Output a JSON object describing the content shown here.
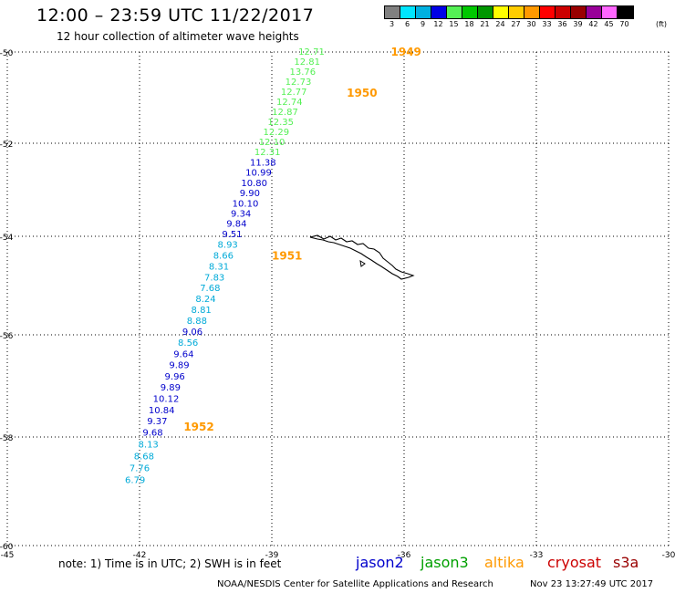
{
  "header": {
    "title": "12:00 – 23:59 UTC 11/22/2017",
    "subtitle": "12 hour collection of altimeter wave heights"
  },
  "legend": {
    "units": "(ft)",
    "swatches": [
      {
        "label": "3",
        "color": "#808080"
      },
      {
        "label": "6",
        "color": "#00e5ff"
      },
      {
        "label": "9",
        "color": "#00b0e0"
      },
      {
        "label": "12",
        "color": "#0000e6"
      },
      {
        "label": "15",
        "color": "#55f055"
      },
      {
        "label": "18",
        "color": "#00c800"
      },
      {
        "label": "21",
        "color": "#009600"
      },
      {
        "label": "24",
        "color": "#ffff00"
      },
      {
        "label": "27",
        "color": "#ffcc00"
      },
      {
        "label": "30",
        "color": "#ff9900"
      },
      {
        "label": "33",
        "color": "#ff0000"
      },
      {
        "label": "36",
        "color": "#cc0000"
      },
      {
        "label": "39",
        "color": "#990000"
      },
      {
        "label": "42",
        "color": "#990099"
      },
      {
        "label": "45",
        "color": "#ff66ff"
      },
      {
        "label": "70",
        "color": "#000000"
      }
    ]
  },
  "map": {
    "lat_labels": [
      {
        "value": -50,
        "label": "-50"
      },
      {
        "value": -52,
        "label": "-52"
      },
      {
        "value": -54,
        "label": "-54"
      },
      {
        "value": -56,
        "label": "-56"
      },
      {
        "value": -58,
        "label": "-58"
      },
      {
        "value": -60,
        "label": "-60"
      }
    ],
    "lon_labels": [
      {
        "value": -45,
        "label": "-45"
      },
      {
        "value": -42,
        "label": "-42"
      },
      {
        "value": -39,
        "label": "-39"
      },
      {
        "value": -36,
        "label": "-36"
      },
      {
        "value": -33,
        "label": "-33"
      },
      {
        "value": -30,
        "label": "-30"
      }
    ],
    "time_labels": [
      {
        "text": "1949",
        "lon": -36.3,
        "lat": -50.0
      },
      {
        "text": "1950",
        "lon": -37.3,
        "lat": -50.9
      },
      {
        "text": "1951",
        "lon": -39.0,
        "lat": -54.4
      },
      {
        "text": "1952",
        "lon": -41.0,
        "lat": -57.8
      }
    ],
    "track": [
      {
        "v": "12.71",
        "lon": -38.1,
        "lat": -50.0,
        "sat": "jason3"
      },
      {
        "v": "12.81",
        "lon": -38.2,
        "lat": -50.22,
        "sat": "jason3"
      },
      {
        "v": "13.76",
        "lon": -38.3,
        "lat": -50.44,
        "sat": "jason3"
      },
      {
        "v": "12.73",
        "lon": -38.4,
        "lat": -50.66,
        "sat": "jason3"
      },
      {
        "v": "12.77",
        "lon": -38.5,
        "lat": -50.88,
        "sat": "jason3"
      },
      {
        "v": "12.74",
        "lon": -38.6,
        "lat": -51.1,
        "sat": "jason3"
      },
      {
        "v": "12.87",
        "lon": -38.7,
        "lat": -51.32,
        "sat": "jason3"
      },
      {
        "v": "12.35",
        "lon": -38.8,
        "lat": -51.54,
        "sat": "jason3"
      },
      {
        "v": "12.29",
        "lon": -38.9,
        "lat": -51.76,
        "sat": "jason3"
      },
      {
        "v": "12.10",
        "lon": -39.0,
        "lat": -51.98,
        "sat": "jason3"
      },
      {
        "v": "12.31",
        "lon": -39.1,
        "lat": -52.2,
        "sat": "jason3"
      },
      {
        "v": "11.38",
        "lon": -39.2,
        "lat": -52.42,
        "sat": "jason2"
      },
      {
        "v": "10.99",
        "lon": -39.3,
        "lat": -52.64,
        "sat": "jason2"
      },
      {
        "v": "10.80",
        "lon": -39.4,
        "lat": -52.86,
        "sat": "jason2"
      },
      {
        "v": "9.90",
        "lon": -39.5,
        "lat": -53.08,
        "sat": "jason2"
      },
      {
        "v": "10.10",
        "lon": -39.6,
        "lat": -53.3,
        "sat": "jason2"
      },
      {
        "v": "9.34",
        "lon": -39.7,
        "lat": -53.52,
        "sat": "jason2"
      },
      {
        "v": "9.84",
        "lon": -39.8,
        "lat": -53.74,
        "sat": "jason2"
      },
      {
        "v": "9.51",
        "lon": -39.9,
        "lat": -53.96,
        "sat": "jason2"
      },
      {
        "v": "8.93",
        "lon": -40.0,
        "lat": -54.18,
        "sat": "cyan"
      },
      {
        "v": "8.66",
        "lon": -40.1,
        "lat": -54.4,
        "sat": "cyan"
      },
      {
        "v": "8.31",
        "lon": -40.2,
        "lat": -54.62,
        "sat": "cyan"
      },
      {
        "v": "7.83",
        "lon": -40.3,
        "lat": -54.84,
        "sat": "cyan"
      },
      {
        "v": "7.68",
        "lon": -40.4,
        "lat": -55.06,
        "sat": "cyan"
      },
      {
        "v": "8.24",
        "lon": -40.5,
        "lat": -55.28,
        "sat": "cyan"
      },
      {
        "v": "8.81",
        "lon": -40.6,
        "lat": -55.5,
        "sat": "cyan"
      },
      {
        "v": "8.88",
        "lon": -40.7,
        "lat": -55.72,
        "sat": "cyan"
      },
      {
        "v": "9.06",
        "lon": -40.8,
        "lat": -55.94,
        "sat": "jason2"
      },
      {
        "v": "8.56",
        "lon": -40.9,
        "lat": -56.16,
        "sat": "cyan"
      },
      {
        "v": "9.64",
        "lon": -41.0,
        "lat": -56.38,
        "sat": "jason2"
      },
      {
        "v": "9.89",
        "lon": -41.1,
        "lat": -56.6,
        "sat": "jason2"
      },
      {
        "v": "9.96",
        "lon": -41.2,
        "lat": -56.82,
        "sat": "jason2"
      },
      {
        "v": "9.89",
        "lon": -41.3,
        "lat": -57.04,
        "sat": "jason2"
      },
      {
        "v": "10.12",
        "lon": -41.4,
        "lat": -57.26,
        "sat": "jason2"
      },
      {
        "v": "10.84",
        "lon": -41.5,
        "lat": -57.48,
        "sat": "jason2"
      },
      {
        "v": "9.37",
        "lon": -41.6,
        "lat": -57.7,
        "sat": "jason2"
      },
      {
        "v": "9.68",
        "lon": -41.7,
        "lat": -57.92,
        "sat": "jason2"
      },
      {
        "v": "8.13",
        "lon": -41.8,
        "lat": -58.14,
        "sat": "cyan"
      },
      {
        "v": "8.68",
        "lon": -41.9,
        "lat": -58.36,
        "sat": "cyan"
      },
      {
        "v": "7.76",
        "lon": -42.0,
        "lat": -58.58,
        "sat": "cyan"
      },
      {
        "v": "6.79",
        "lon": -42.1,
        "lat": -58.8,
        "sat": "cyan"
      }
    ]
  },
  "footer": {
    "note": "note:  1) Time is in UTC;  2) SWH is in feet",
    "satellites": [
      {
        "name": "jason2",
        "color": "#0000cc"
      },
      {
        "name": "jason3",
        "color": "#00a000"
      },
      {
        "name": "altika",
        "color": "#ff9900"
      },
      {
        "name": "cryosat",
        "color": "#cc0000"
      },
      {
        "name": "s3a",
        "color": "#990000"
      }
    ],
    "credit": "NOAA/NESDIS Center for Satellite Applications and Research",
    "timestamp": "Nov 23 13:27:49 UTC 2017"
  }
}
